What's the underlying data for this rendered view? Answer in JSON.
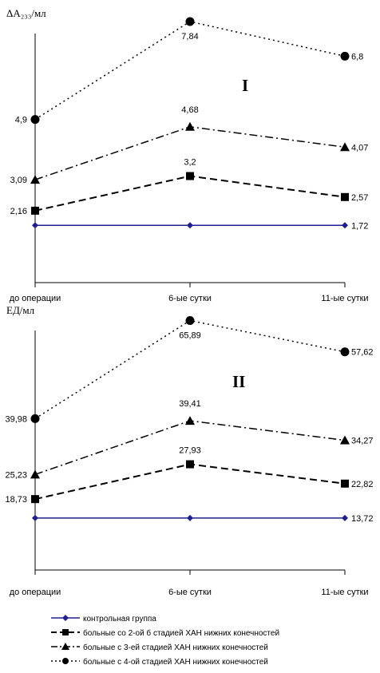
{
  "charts": [
    {
      "ylabel": "ΔA₂₃₃/мл",
      "panel_label": "I",
      "categories": [
        "до операции",
        "6-ые сутки",
        "11-ые сутки"
      ],
      "series": [
        {
          "name": "контрольная группа",
          "values": [
            1.72,
            1.72,
            1.72
          ],
          "labels": [
            "",
            "",
            "1,72"
          ]
        },
        {
          "name": "больные со 2-ой б стадией ХАН нижних конечностей",
          "values": [
            2.16,
            3.2,
            2.57
          ],
          "labels": [
            "2,16",
            "3,2",
            "2,57"
          ]
        },
        {
          "name": "больные с 3-ей стадией ХАН нижних конечностей",
          "values": [
            3.09,
            4.68,
            4.07
          ],
          "labels": [
            "3,09",
            "4,68",
            "4,07"
          ]
        },
        {
          "name": "больные с 4-ой стадией ХАН нижних конечностей",
          "values": [
            4.9,
            7.84,
            6.8
          ],
          "labels": [
            "4,9",
            "7,84",
            "6,8"
          ]
        }
      ]
    },
    {
      "ylabel": "ЕД/мл",
      "panel_label": "II",
      "categories": [
        "до операции",
        "6-ые сутки",
        "11-ые сутки"
      ],
      "series": [
        {
          "name": "контрольная группа",
          "values": [
            13.72,
            13.72,
            13.72
          ],
          "labels": [
            "",
            "",
            "13,72"
          ]
        },
        {
          "name": "больные со 2-ой б стадией ХАН нижних конечностей",
          "values": [
            18.73,
            27.93,
            22.82
          ],
          "labels": [
            "18,73",
            "27,93",
            "22,82"
          ]
        },
        {
          "name": "больные с 3-ей стадией ХАН нижних конечностей",
          "values": [
            25.23,
            39.41,
            34.27
          ],
          "labels": [
            "25,23",
            "39,41",
            "34,27"
          ]
        },
        {
          "name": "больные с 4-ой стадией ХАН нижних конечностей",
          "values": [
            39.98,
            65.89,
            57.62
          ],
          "labels": [
            "39,98",
            "65,89",
            "57,62"
          ]
        }
      ]
    }
  ],
  "chart_data": [
    {
      "type": "line",
      "ylabel": "ΔA₂₃₃/мл",
      "categories": [
        "до операции",
        "6-ые сутки",
        "11-ые сутки"
      ],
      "series": [
        {
          "name": "контрольная группа",
          "values": [
            1.72,
            1.72,
            1.72
          ]
        },
        {
          "name": "больные со 2-ой б стадией ХАН нижних конечностей",
          "values": [
            2.16,
            3.2,
            2.57
          ]
        },
        {
          "name": "больные с 3-ей стадией ХАН нижних конечностей",
          "values": [
            3.09,
            4.68,
            4.07
          ]
        },
        {
          "name": "больные с 4-ой стадией ХАН нижних конечностей",
          "values": [
            4.9,
            7.84,
            6.8
          ]
        }
      ],
      "grid": false,
      "legend": "bottom"
    },
    {
      "type": "line",
      "ylabel": "ЕД/мл",
      "categories": [
        "до операции",
        "6-ые сутки",
        "11-ые сутки"
      ],
      "series": [
        {
          "name": "контрольная группа",
          "values": [
            13.72,
            13.72,
            13.72
          ]
        },
        {
          "name": "больные со 2-ой б стадией ХАН нижних конечностей",
          "values": [
            18.73,
            27.93,
            22.82
          ]
        },
        {
          "name": "больные с 3-ей стадией ХАН нижних конечностей",
          "values": [
            25.23,
            39.41,
            34.27
          ]
        },
        {
          "name": "больные с 4-ой стадией ХАН нижних конечностей",
          "values": [
            39.98,
            65.89,
            57.62
          ]
        }
      ],
      "grid": false,
      "legend": "bottom"
    }
  ],
  "legend": [
    {
      "label": "контрольная группа",
      "style": "solid",
      "marker": "diamond",
      "color": "#1F1F8F"
    },
    {
      "label": "больные со 2-ой б стадией ХАН нижних конечностей",
      "style": "dashed",
      "marker": "square",
      "color": "#000000"
    },
    {
      "label": "больные с 3-ей стадией ХАН нижних конечностей",
      "style": "dashdot",
      "marker": "triangle",
      "color": "#000000"
    },
    {
      "label": "больные с 4-ой стадией ХАН нижних конечностей",
      "style": "dotted",
      "marker": "circle",
      "color": "#000000"
    }
  ],
  "colors": {
    "control": "#1F1F8F",
    "series": "#000000"
  }
}
